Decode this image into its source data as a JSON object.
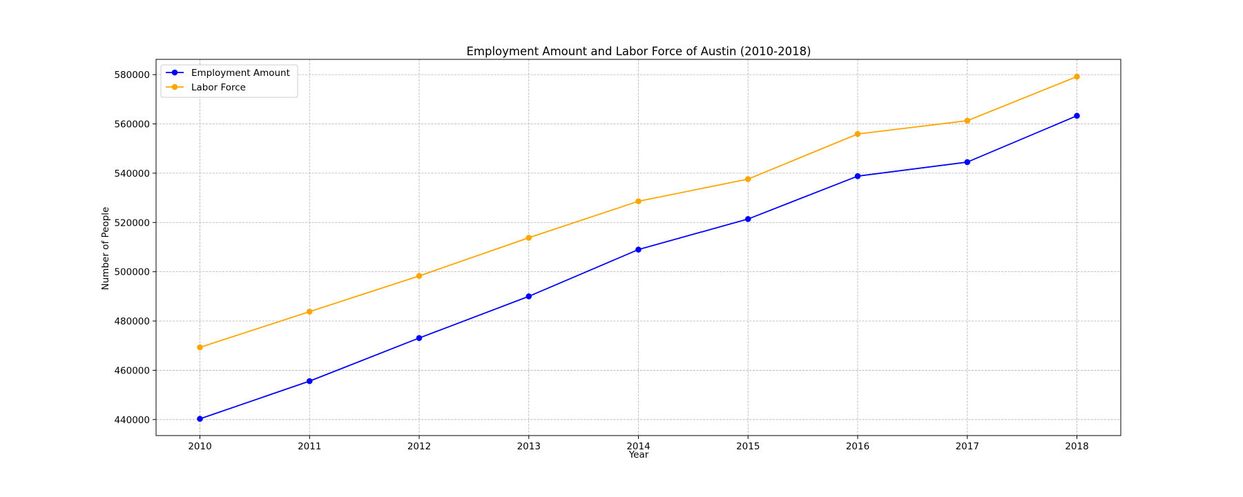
{
  "chart_data": {
    "type": "line",
    "title": "Employment Amount and Labor Force of Austin (2010-2018)",
    "xlabel": "Year",
    "ylabel": "Number of People",
    "x": [
      2010,
      2011,
      2012,
      2013,
      2014,
      2015,
      2016,
      2017,
      2018
    ],
    "x_tick_labels": [
      "2010",
      "2011",
      "2012",
      "2013",
      "2014",
      "2015",
      "2016",
      "2017",
      "2018"
    ],
    "y_ticks": [
      440000,
      460000,
      480000,
      500000,
      520000,
      540000,
      560000,
      580000
    ],
    "y_tick_labels": [
      "440000",
      "460000",
      "480000",
      "500000",
      "520000",
      "540000",
      "560000",
      "580000"
    ],
    "xlim": [
      2009.6,
      2018.4
    ],
    "ylim": [
      433500,
      586200
    ],
    "grid": true,
    "legend_position": "top-left",
    "series": [
      {
        "name": "Employment Amount",
        "color": "#0000ff",
        "marker": "circle",
        "values": [
          440300,
          455600,
          473100,
          490000,
          509000,
          521400,
          538800,
          544500,
          563300
        ]
      },
      {
        "name": "Labor Force",
        "color": "#ffa500",
        "marker": "circle",
        "values": [
          469300,
          483800,
          498300,
          513800,
          528600,
          537600,
          555900,
          561300,
          579200
        ]
      }
    ]
  }
}
